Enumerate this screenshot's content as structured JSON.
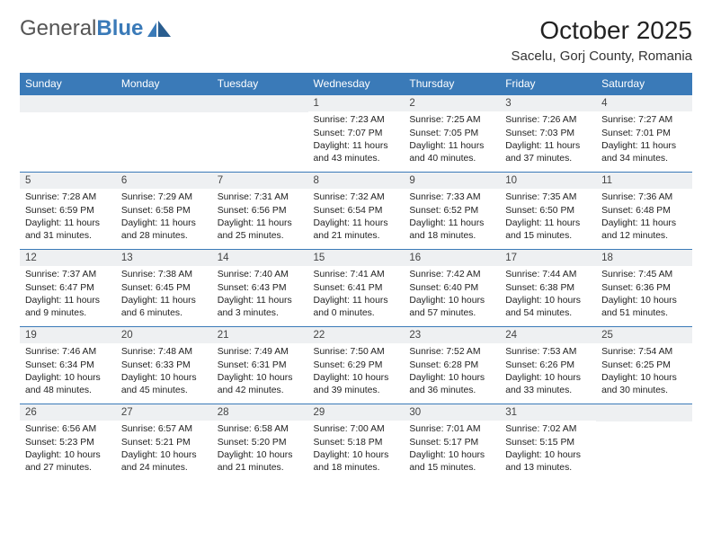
{
  "brand": {
    "part1": "General",
    "part2": "Blue"
  },
  "title": "October 2025",
  "location": "Sacelu, Gorj County, Romania",
  "colors": {
    "accent": "#3a7ab8",
    "daybg": "#eef0f2",
    "text": "#212121"
  },
  "weekdays": [
    "Sunday",
    "Monday",
    "Tuesday",
    "Wednesday",
    "Thursday",
    "Friday",
    "Saturday"
  ],
  "days": [
    {
      "n": "",
      "empty": true
    },
    {
      "n": "",
      "empty": true
    },
    {
      "n": "",
      "empty": true
    },
    {
      "n": "1",
      "sr": "7:23 AM",
      "ss": "7:07 PM",
      "dl": "11 hours and 43 minutes."
    },
    {
      "n": "2",
      "sr": "7:25 AM",
      "ss": "7:05 PM",
      "dl": "11 hours and 40 minutes."
    },
    {
      "n": "3",
      "sr": "7:26 AM",
      "ss": "7:03 PM",
      "dl": "11 hours and 37 minutes."
    },
    {
      "n": "4",
      "sr": "7:27 AM",
      "ss": "7:01 PM",
      "dl": "11 hours and 34 minutes."
    },
    {
      "n": "5",
      "sr": "7:28 AM",
      "ss": "6:59 PM",
      "dl": "11 hours and 31 minutes."
    },
    {
      "n": "6",
      "sr": "7:29 AM",
      "ss": "6:58 PM",
      "dl": "11 hours and 28 minutes."
    },
    {
      "n": "7",
      "sr": "7:31 AM",
      "ss": "6:56 PM",
      "dl": "11 hours and 25 minutes."
    },
    {
      "n": "8",
      "sr": "7:32 AM",
      "ss": "6:54 PM",
      "dl": "11 hours and 21 minutes."
    },
    {
      "n": "9",
      "sr": "7:33 AM",
      "ss": "6:52 PM",
      "dl": "11 hours and 18 minutes."
    },
    {
      "n": "10",
      "sr": "7:35 AM",
      "ss": "6:50 PM",
      "dl": "11 hours and 15 minutes."
    },
    {
      "n": "11",
      "sr": "7:36 AM",
      "ss": "6:48 PM",
      "dl": "11 hours and 12 minutes."
    },
    {
      "n": "12",
      "sr": "7:37 AM",
      "ss": "6:47 PM",
      "dl": "11 hours and 9 minutes."
    },
    {
      "n": "13",
      "sr": "7:38 AM",
      "ss": "6:45 PM",
      "dl": "11 hours and 6 minutes."
    },
    {
      "n": "14",
      "sr": "7:40 AM",
      "ss": "6:43 PM",
      "dl": "11 hours and 3 minutes."
    },
    {
      "n": "15",
      "sr": "7:41 AM",
      "ss": "6:41 PM",
      "dl": "11 hours and 0 minutes."
    },
    {
      "n": "16",
      "sr": "7:42 AM",
      "ss": "6:40 PM",
      "dl": "10 hours and 57 minutes."
    },
    {
      "n": "17",
      "sr": "7:44 AM",
      "ss": "6:38 PM",
      "dl": "10 hours and 54 minutes."
    },
    {
      "n": "18",
      "sr": "7:45 AM",
      "ss": "6:36 PM",
      "dl": "10 hours and 51 minutes."
    },
    {
      "n": "19",
      "sr": "7:46 AM",
      "ss": "6:34 PM",
      "dl": "10 hours and 48 minutes."
    },
    {
      "n": "20",
      "sr": "7:48 AM",
      "ss": "6:33 PM",
      "dl": "10 hours and 45 minutes."
    },
    {
      "n": "21",
      "sr": "7:49 AM",
      "ss": "6:31 PM",
      "dl": "10 hours and 42 minutes."
    },
    {
      "n": "22",
      "sr": "7:50 AM",
      "ss": "6:29 PM",
      "dl": "10 hours and 39 minutes."
    },
    {
      "n": "23",
      "sr": "7:52 AM",
      "ss": "6:28 PM",
      "dl": "10 hours and 36 minutes."
    },
    {
      "n": "24",
      "sr": "7:53 AM",
      "ss": "6:26 PM",
      "dl": "10 hours and 33 minutes."
    },
    {
      "n": "25",
      "sr": "7:54 AM",
      "ss": "6:25 PM",
      "dl": "10 hours and 30 minutes."
    },
    {
      "n": "26",
      "sr": "6:56 AM",
      "ss": "5:23 PM",
      "dl": "10 hours and 27 minutes."
    },
    {
      "n": "27",
      "sr": "6:57 AM",
      "ss": "5:21 PM",
      "dl": "10 hours and 24 minutes."
    },
    {
      "n": "28",
      "sr": "6:58 AM",
      "ss": "5:20 PM",
      "dl": "10 hours and 21 minutes."
    },
    {
      "n": "29",
      "sr": "7:00 AM",
      "ss": "5:18 PM",
      "dl": "10 hours and 18 minutes."
    },
    {
      "n": "30",
      "sr": "7:01 AM",
      "ss": "5:17 PM",
      "dl": "10 hours and 15 minutes."
    },
    {
      "n": "31",
      "sr": "7:02 AM",
      "ss": "5:15 PM",
      "dl": "10 hours and 13 minutes."
    },
    {
      "n": "",
      "empty": true
    }
  ],
  "labels": {
    "sunrise": "Sunrise:",
    "sunset": "Sunset:",
    "daylight": "Daylight:"
  }
}
